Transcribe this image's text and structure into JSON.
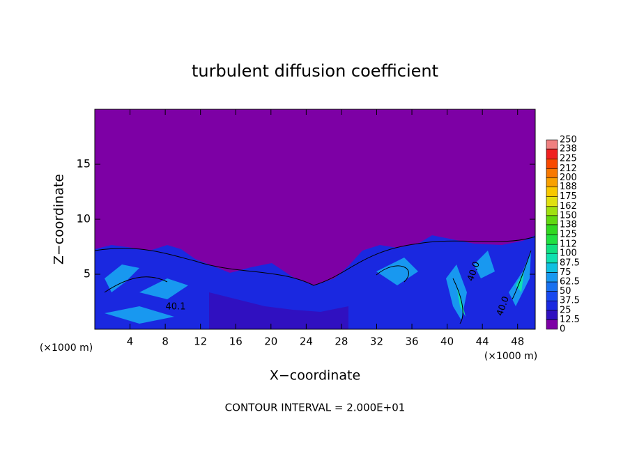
{
  "chart_data": {
    "type": "contour",
    "title": "turbulent diffusion coefficient",
    "xlabel": "X−coordinate",
    "ylabel": "Z−coordinate",
    "x_unit_left": "(×1000 m)",
    "x_unit_right": "(×1000 m)",
    "footnote": "CONTOUR INTERVAL = 2.000E+01",
    "xlim": [
      0,
      50
    ],
    "xticks": [
      4,
      8,
      12,
      16,
      20,
      24,
      28,
      32,
      36,
      40,
      44,
      48
    ],
    "ylim": [
      0,
      20
    ],
    "yticks": [
      5,
      10,
      15
    ],
    "contour_labels": [
      "40.1",
      "40.0",
      "40.0"
    ],
    "colorbar": {
      "levels": [
        0,
        12.5,
        25,
        37.5,
        50,
        62.5,
        75,
        87.5,
        100,
        112,
        125,
        138,
        150,
        162,
        175,
        188,
        200,
        212,
        225,
        238,
        250
      ],
      "colors": [
        "#7d00a5",
        "#3010c0",
        "#1a28e0",
        "#1848f0",
        "#1870f0",
        "#1898f0",
        "#10c0e0",
        "#10e0b0",
        "#10e080",
        "#20e040",
        "#30d820",
        "#60d810",
        "#a0e010",
        "#e0e010",
        "#f8c800",
        "#f8a000",
        "#f87800",
        "#f84800",
        "#f02020",
        "#f08080"
      ]
    }
  }
}
